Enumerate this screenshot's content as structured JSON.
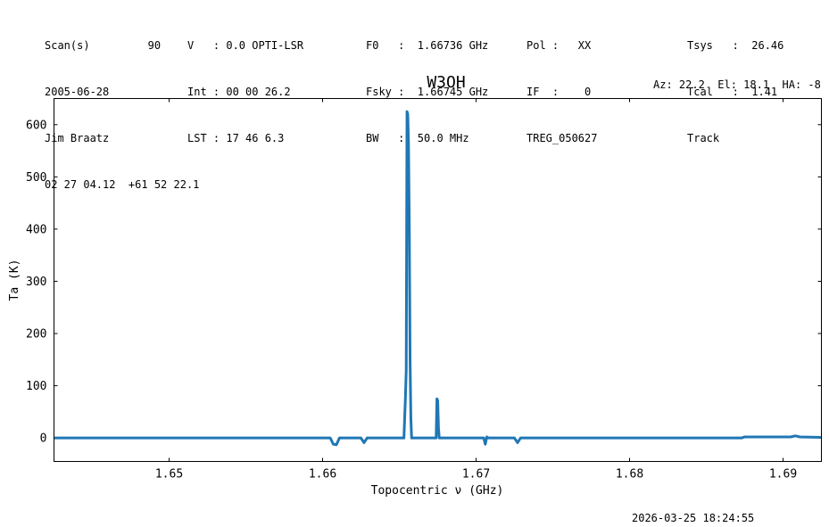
{
  "header": {
    "col1": [
      "Scan(s)         90",
      "2005-06-28",
      "Jim Braatz",
      "02 27 04.12  +61 52 22.1"
    ],
    "col2": [
      "V   : 0.0 OPTI-LSR",
      "Int : 00 00 26.2",
      "LST : 17 46 6.3"
    ],
    "col3": [
      "F0   :  1.66736 GHz",
      "Fsky :  1.66745 GHz",
      "BW   :  50.0 MHz"
    ],
    "col4": [
      "Pol :   XX",
      "IF  :    0",
      "TREG_050627"
    ],
    "col5": [
      "Tsys   :  26.46",
      "Tcal   :  1.41",
      "Track"
    ],
    "azel": "Az: 22.2  El: 18.1  HA: -8"
  },
  "footer": {
    "timestamp": "2026-03-25 18:24:55"
  },
  "chart_data": {
    "type": "line",
    "title": "W3OH",
    "xlabel": "Topocentric ν (GHz)",
    "ylabel": "Ta (K)",
    "xlim": [
      1.6425,
      1.6925
    ],
    "ylim": [
      -45,
      650
    ],
    "xticks": [
      1.65,
      1.66,
      1.67,
      1.68,
      1.69
    ],
    "xtick_labels": [
      "1.65",
      "1.66",
      "1.67",
      "1.68",
      "1.69"
    ],
    "yticks": [
      0,
      100,
      200,
      300,
      400,
      500,
      600
    ],
    "ytick_labels": [
      "0",
      "100",
      "200",
      "300",
      "400",
      "500",
      "600"
    ],
    "grid": false,
    "color": "#1f77b4",
    "series": [
      {
        "x": [
          1.6425,
          1.6605,
          1.6607,
          1.6609,
          1.6611,
          1.6625,
          1.6627,
          1.6629,
          1.6653,
          1.6654,
          1.66545,
          1.6655,
          1.66555,
          1.6656,
          1.66565,
          1.6657,
          1.66575,
          1.6658,
          1.6674,
          1.66745,
          1.6675,
          1.66755,
          1.6676,
          1.6705,
          1.6706,
          1.6707,
          1.6708,
          1.6725,
          1.6727,
          1.6729,
          1.6873,
          1.6875,
          1.6905,
          1.6908,
          1.6911,
          1.6925
        ],
        "y": [
          0,
          0,
          -12,
          -13,
          0,
          0,
          -9,
          0,
          0,
          80,
          130,
          625,
          620,
          560,
          400,
          150,
          40,
          0,
          0,
          75,
          72,
          20,
          0,
          0,
          -12,
          2,
          0,
          0,
          -9,
          0,
          0,
          2,
          2,
          4,
          2,
          1
        ]
      }
    ]
  }
}
